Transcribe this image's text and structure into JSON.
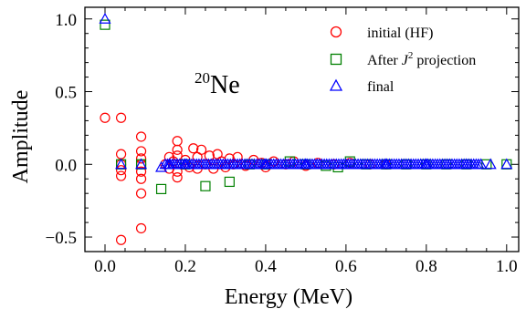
{
  "chart_data": {
    "type": "scatter",
    "xlabel": "Energy (MeV)",
    "ylabel": "Amplitude",
    "xlim": [
      -0.05,
      1.03
    ],
    "ylim": [
      -0.6,
      1.08
    ],
    "xticks": [
      0.0,
      0.2,
      0.4,
      0.6,
      0.8,
      1.0
    ],
    "xtick_labels": [
      "0.0",
      "0.2",
      "0.4",
      "0.6",
      "0.8",
      "1.0"
    ],
    "yticks": [
      -0.5,
      0.0,
      0.5,
      1.0
    ],
    "ytick_labels": [
      "−0.5",
      "0.0",
      "0.5",
      "1.0"
    ],
    "grid": false,
    "legend_position": "top-right",
    "annotation": {
      "superscript": "20",
      "text": "Ne",
      "position": "upper-left"
    },
    "series": [
      {
        "name": "initial (HF)",
        "marker": "circle",
        "color": "#ff0000",
        "points": [
          [
            0.0,
            0.32
          ],
          [
            0.04,
            0.32
          ],
          [
            0.04,
            0.07
          ],
          [
            0.04,
            0.0
          ],
          [
            0.04,
            -0.04
          ],
          [
            0.04,
            -0.08
          ],
          [
            0.04,
            -0.52
          ],
          [
            0.09,
            0.19
          ],
          [
            0.09,
            0.09
          ],
          [
            0.09,
            0.04
          ],
          [
            0.09,
            0.0
          ],
          [
            0.09,
            -0.05
          ],
          [
            0.09,
            -0.1
          ],
          [
            0.09,
            -0.2
          ],
          [
            0.09,
            -0.44
          ],
          [
            0.15,
            0.0
          ],
          [
            0.16,
            0.05
          ],
          [
            0.16,
            -0.03
          ],
          [
            0.17,
            0.02
          ],
          [
            0.18,
            0.16
          ],
          [
            0.18,
            0.1
          ],
          [
            0.18,
            0.06
          ],
          [
            0.18,
            -0.05
          ],
          [
            0.18,
            -0.09
          ],
          [
            0.2,
            0.03
          ],
          [
            0.21,
            -0.02
          ],
          [
            0.22,
            0.11
          ],
          [
            0.23,
            0.05
          ],
          [
            0.23,
            -0.03
          ],
          [
            0.24,
            0.1
          ],
          [
            0.25,
            0.0
          ],
          [
            0.26,
            0.06
          ],
          [
            0.27,
            -0.03
          ],
          [
            0.28,
            0.07
          ],
          [
            0.29,
            0.02
          ],
          [
            0.3,
            -0.02
          ],
          [
            0.31,
            0.04
          ],
          [
            0.32,
            0.0
          ],
          [
            0.33,
            0.05
          ],
          [
            0.35,
            -0.01
          ],
          [
            0.37,
            0.03
          ],
          [
            0.39,
            0.01
          ],
          [
            0.4,
            -0.02
          ],
          [
            0.42,
            0.02
          ],
          [
            0.45,
            0.0
          ],
          [
            0.47,
            0.02
          ],
          [
            0.5,
            -0.01
          ],
          [
            0.53,
            0.01
          ],
          [
            0.57,
            0.0
          ],
          [
            0.61,
            0.01
          ],
          [
            0.66,
            0.0
          ],
          [
            0.7,
            0.0
          ]
        ]
      },
      {
        "name": "After J² projection",
        "legend_base": "After ",
        "legend_var": "J",
        "legend_sup": "2",
        "legend_tail": " projection",
        "marker": "square",
        "color": "#008000",
        "points": [
          [
            0.0,
            0.96
          ],
          [
            0.04,
            0.0
          ],
          [
            0.09,
            0.0
          ],
          [
            0.14,
            -0.17
          ],
          [
            0.2,
            0.0
          ],
          [
            0.25,
            -0.15
          ],
          [
            0.31,
            -0.12
          ],
          [
            0.36,
            0.0
          ],
          [
            0.4,
            0.0
          ],
          [
            0.46,
            0.02
          ],
          [
            0.5,
            0.0
          ],
          [
            0.55,
            -0.01
          ],
          [
            0.58,
            -0.02
          ],
          [
            0.61,
            0.02
          ],
          [
            0.65,
            0.0
          ],
          [
            0.7,
            0.0
          ],
          [
            0.75,
            0.0
          ],
          [
            0.8,
            0.0
          ],
          [
            0.85,
            0.0
          ],
          [
            0.9,
            0.0
          ],
          [
            0.95,
            0.0
          ],
          [
            1.0,
            0.0
          ]
        ]
      },
      {
        "name": "final",
        "marker": "triangle",
        "color": "#0000ff",
        "points": [
          [
            0.0,
            1.0
          ],
          [
            0.04,
            0.0
          ],
          [
            0.09,
            0.0
          ],
          [
            0.14,
            -0.02
          ],
          [
            0.16,
            0.0
          ],
          [
            0.18,
            0.0
          ],
          [
            0.2,
            0.0
          ],
          [
            0.3,
            0.0
          ],
          [
            0.4,
            0.0
          ],
          [
            0.5,
            0.0
          ],
          [
            0.6,
            0.0
          ],
          [
            0.7,
            0.0
          ],
          [
            0.8,
            0.0
          ],
          [
            0.9,
            0.0
          ],
          [
            0.96,
            0.0
          ],
          [
            1.0,
            0.0
          ]
        ],
        "dense_band": {
          "x_start": 0.15,
          "x_end": 0.94,
          "y": 0.0
        }
      }
    ]
  }
}
